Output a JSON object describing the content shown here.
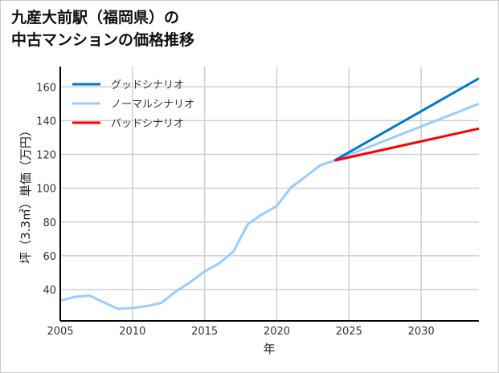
{
  "chart_data": {
    "type": "line",
    "title_lines": [
      "九産大前駅（福岡県）の",
      "中古マンションの価格推移"
    ],
    "xlabel": "年",
    "ylabel": "坪（3.3㎡）単価（万円）",
    "xlim": [
      2005,
      2034
    ],
    "ylim": [
      21.5,
      172
    ],
    "xticks": [
      2005,
      2010,
      2015,
      2020,
      2025,
      2030
    ],
    "yticks": [
      40,
      60,
      80,
      100,
      120,
      140,
      160
    ],
    "grid": true,
    "legend_position": "top-left",
    "series": [
      {
        "name": "グッドシナリオ",
        "color": "#0077cc",
        "x": [
          2024,
          2034
        ],
        "y": [
          116.4,
          165
        ]
      },
      {
        "name": "ノーマルシナリオ",
        "color": "#99ccff",
        "x": [
          2005,
          2006,
          2007,
          2009,
          2010,
          2011,
          2012,
          2013,
          2014,
          2015,
          2016,
          2017,
          2018,
          2019,
          2020,
          2021,
          2022,
          2023,
          2024,
          2034
        ],
        "y": [
          33.4,
          35.7,
          36.5,
          28.6,
          29.1,
          30.2,
          32.1,
          38.9,
          44.4,
          50.8,
          55.5,
          62.6,
          78.8,
          84.7,
          89.5,
          100.6,
          106.9,
          113.5,
          116.4,
          150
        ]
      },
      {
        "name": "バッドシナリオ",
        "color": "#ff0000",
        "x": [
          2024,
          2034
        ],
        "y": [
          116.4,
          135.3
        ]
      }
    ]
  }
}
